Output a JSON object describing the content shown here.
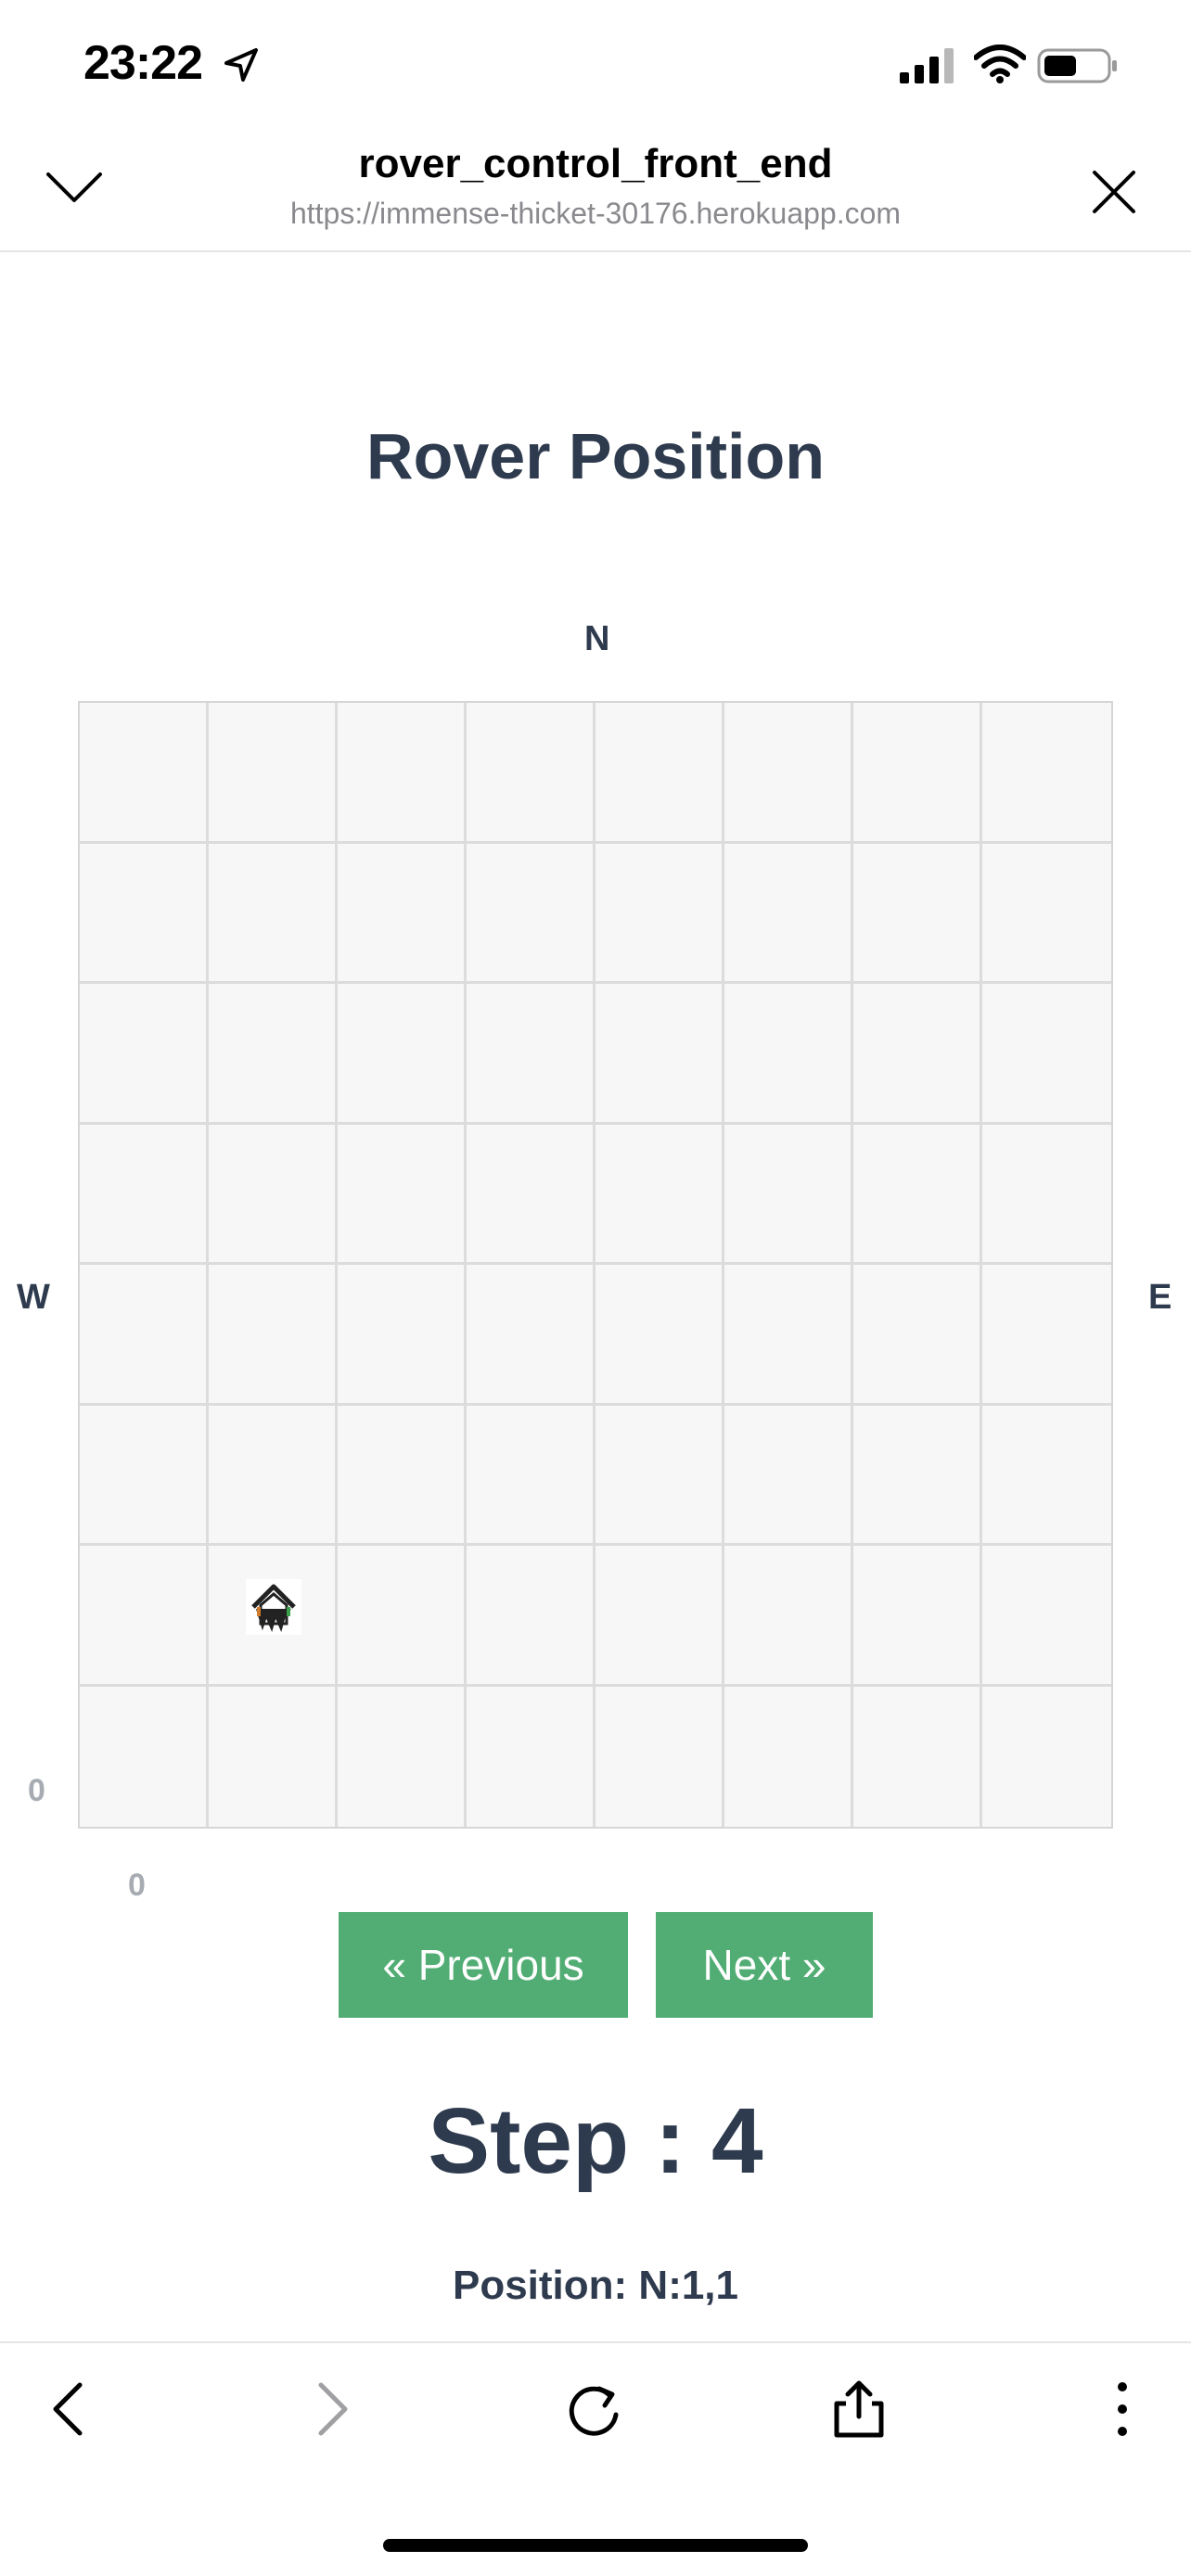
{
  "status_bar": {
    "time": "23:22",
    "icons": [
      "location-arrow-icon",
      "cellular-signal-icon",
      "wifi-icon",
      "battery-icon"
    ]
  },
  "browser": {
    "title": "rover_control_front_end",
    "url": "https://immense-thicket-30176.herokuapp.com"
  },
  "main": {
    "title": "Rover Position",
    "compass": {
      "north": "N",
      "west": "W",
      "east": "E"
    },
    "axis": {
      "y_origin": "0",
      "x_origin": "0"
    },
    "grid": {
      "columns": 8,
      "rows": 8
    },
    "rover": {
      "x": 1,
      "y": 1,
      "heading": "N",
      "icon": "rover-icon"
    },
    "buttons": {
      "previous": "« Previous",
      "next": "Next »"
    },
    "step_text": "Step : 4",
    "position_text": "Position: N:1,1"
  },
  "toolbar": {
    "icons": [
      "back-icon",
      "forward-icon",
      "reload-icon",
      "share-icon",
      "more-icon"
    ]
  },
  "colors": {
    "heading": "#2e3a4d",
    "button": "#52ad74",
    "grid_bg": "#f7f7f7",
    "grid_line": "#dcdcdc"
  }
}
